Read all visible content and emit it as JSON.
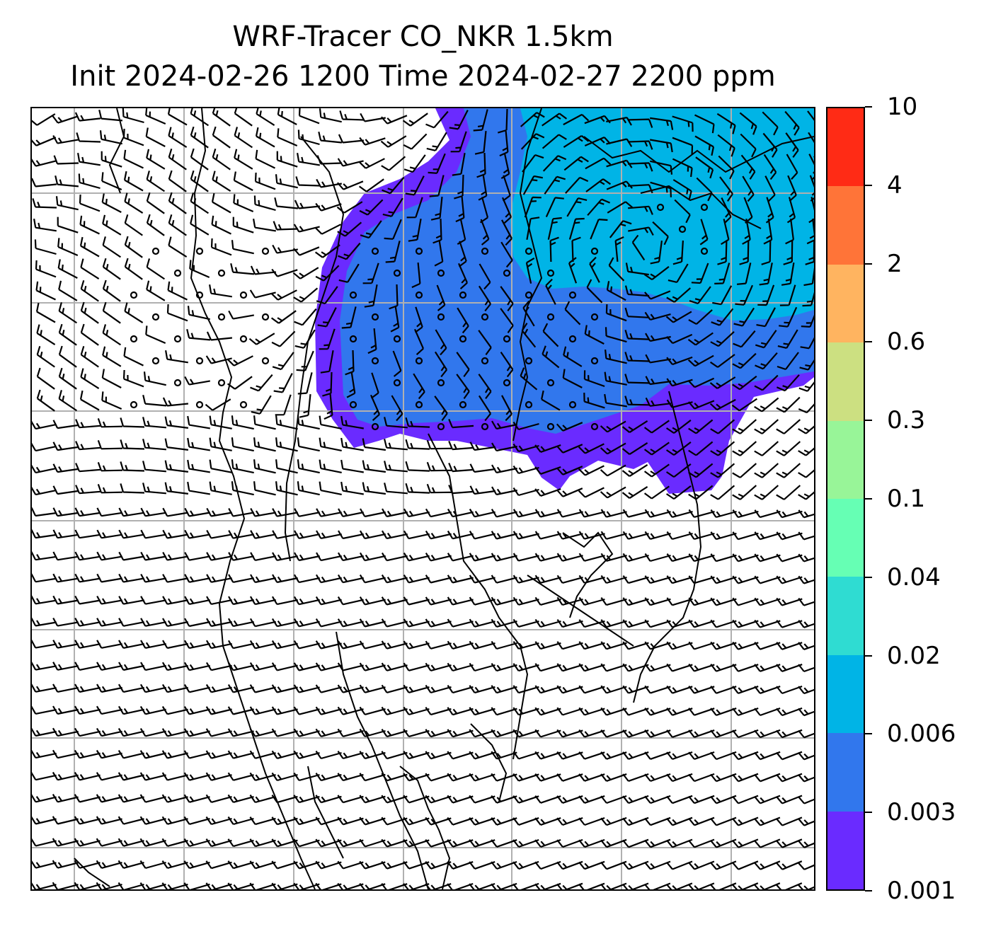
{
  "title": {
    "line1": "WRF-Tracer CO_NKR 1.5km",
    "line2": "Init 2024-02-26 1200 Time 2024-02-27 2200 ppm"
  },
  "colorbar": {
    "tick_labels": [
      "0.001",
      "0.003",
      "0.006",
      "0.02",
      "0.04",
      "0.1",
      "0.3",
      "0.6",
      "2",
      "4",
      "10"
    ],
    "colors": [
      "#6a2bff",
      "#3177ed",
      "#00b4e6",
      "#2fdcd2",
      "#66ffb4",
      "#98f598",
      "#cce081",
      "#ffb460",
      "#ff7438",
      "#ff2b15"
    ]
  },
  "plume_levels": {
    "level_0.001": "#6a2bff",
    "level_0.003": "#3177ed",
    "level_0.006": "#00b4e6"
  },
  "map": {
    "gridlines": "on",
    "gridline_color": "#b0b0b0",
    "symbols": "wind-barbs",
    "calm_marker": "circle"
  }
}
